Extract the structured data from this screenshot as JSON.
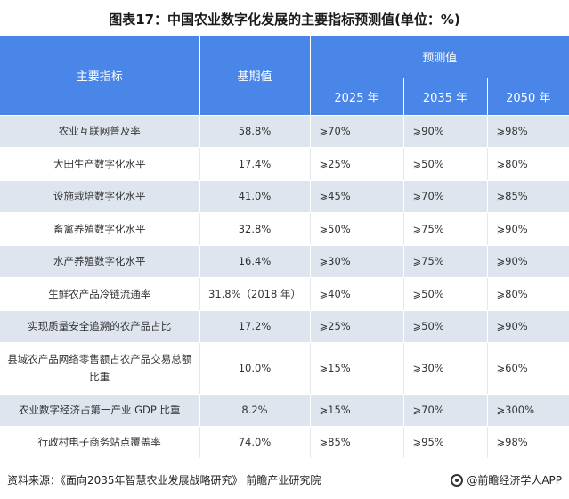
{
  "title": "图表17：中国农业数字化发展的主要指标预测值(单位：%)",
  "table": {
    "header": {
      "indicator": "主要指标",
      "base": "基期值",
      "forecast": "预测值",
      "years": [
        "2025 年",
        "2035 年",
        "2050 年"
      ]
    },
    "rows": [
      {
        "indicator": "农业互联网普及率",
        "base": "58.8%",
        "y2025": "⩾70%",
        "y2035": "⩾90%",
        "y2050": "⩾98%"
      },
      {
        "indicator": "大田生产数字化水平",
        "base": "17.4%",
        "y2025": "⩾25%",
        "y2035": "⩾50%",
        "y2050": "⩾80%"
      },
      {
        "indicator": "设施栽培数字化水平",
        "base": "41.0%",
        "y2025": "⩾45%",
        "y2035": "⩾70%",
        "y2050": "⩾85%"
      },
      {
        "indicator": "畜禽养殖数字化水平",
        "base": "32.8%",
        "y2025": "⩾50%",
        "y2035": "⩾75%",
        "y2050": "⩾90%"
      },
      {
        "indicator": "水产养殖数字化水平",
        "base": "16.4%",
        "y2025": "⩾30%",
        "y2035": "⩾75%",
        "y2050": "⩾90%"
      },
      {
        "indicator": "生鲜农产品冷链流通率",
        "base": "31.8%（2018 年）",
        "y2025": "⩾40%",
        "y2035": "⩾50%",
        "y2050": "⩾80%"
      },
      {
        "indicator": "实现质量安全追溯的农产品占比",
        "base": "17.2%",
        "y2025": "⩾25%",
        "y2035": "⩾50%",
        "y2050": "⩾90%"
      },
      {
        "indicator": "县域农产品网络零售额占农产品交易总额比重",
        "base": "10.0%",
        "y2025": "⩾15%",
        "y2035": "⩾30%",
        "y2050": "⩾60%"
      },
      {
        "indicator": "农业数字经济占第一产业 GDP 比重",
        "base": "8.2%",
        "y2025": "⩾15%",
        "y2035": "⩾70%",
        "y2050": "⩾300%"
      },
      {
        "indicator": "行政村电子商务站点覆盖率",
        "base": "74.0%",
        "y2025": "⩾85%",
        "y2035": "⩾95%",
        "y2050": "⩾98%"
      }
    ]
  },
  "footer": {
    "source": "资料来源：《面向2035年智慧农业发展战略研究》 前瞻产业研究院",
    "brand": "@前瞻经济学人APP",
    "brand_icon": "brand-logo-icon"
  },
  "colors": {
    "header_bg": "#4a86e8",
    "stripe_bg": "#dfe5ef"
  }
}
